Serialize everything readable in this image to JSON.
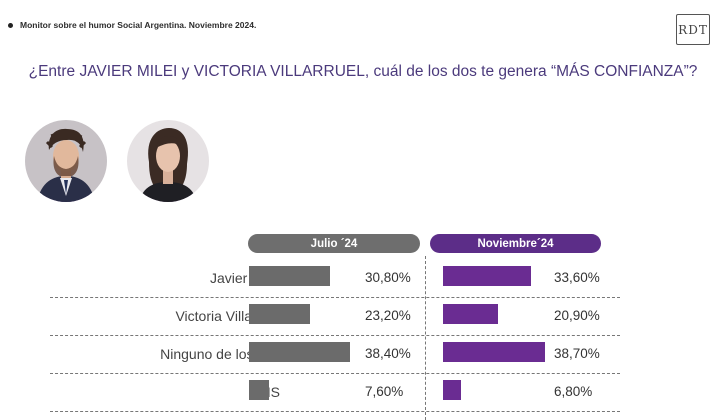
{
  "header": {
    "subtitle": "Monitor sobre el humor Social Argentina. Noviembre 2024.",
    "logo_text": "RDT"
  },
  "question": "¿Entre JAVIER MILEI y VICTORIA VILLARRUEL, cuál de los dos te genera “MÁS CONFIANZA”?",
  "chart_data": {
    "type": "bar",
    "orientation": "horizontal",
    "categories": [
      "Javier Milei",
      "Victoria Villarruel",
      "Ninguno de los dos",
      "NS"
    ],
    "series": [
      {
        "name": "Julio ´24",
        "color": "#6b6b6b",
        "values": [
          30.8,
          23.2,
          38.4,
          7.6
        ],
        "labels": [
          "30,80%",
          "23,20%",
          "38,40%",
          "7,60%"
        ]
      },
      {
        "name": "Noviembre´24",
        "color": "#6a2c92",
        "values": [
          33.6,
          20.9,
          38.7,
          6.8
        ],
        "labels": [
          "33,60%",
          "20,90%",
          "38,70%",
          "6,80%"
        ]
      }
    ],
    "value_max": 40
  }
}
